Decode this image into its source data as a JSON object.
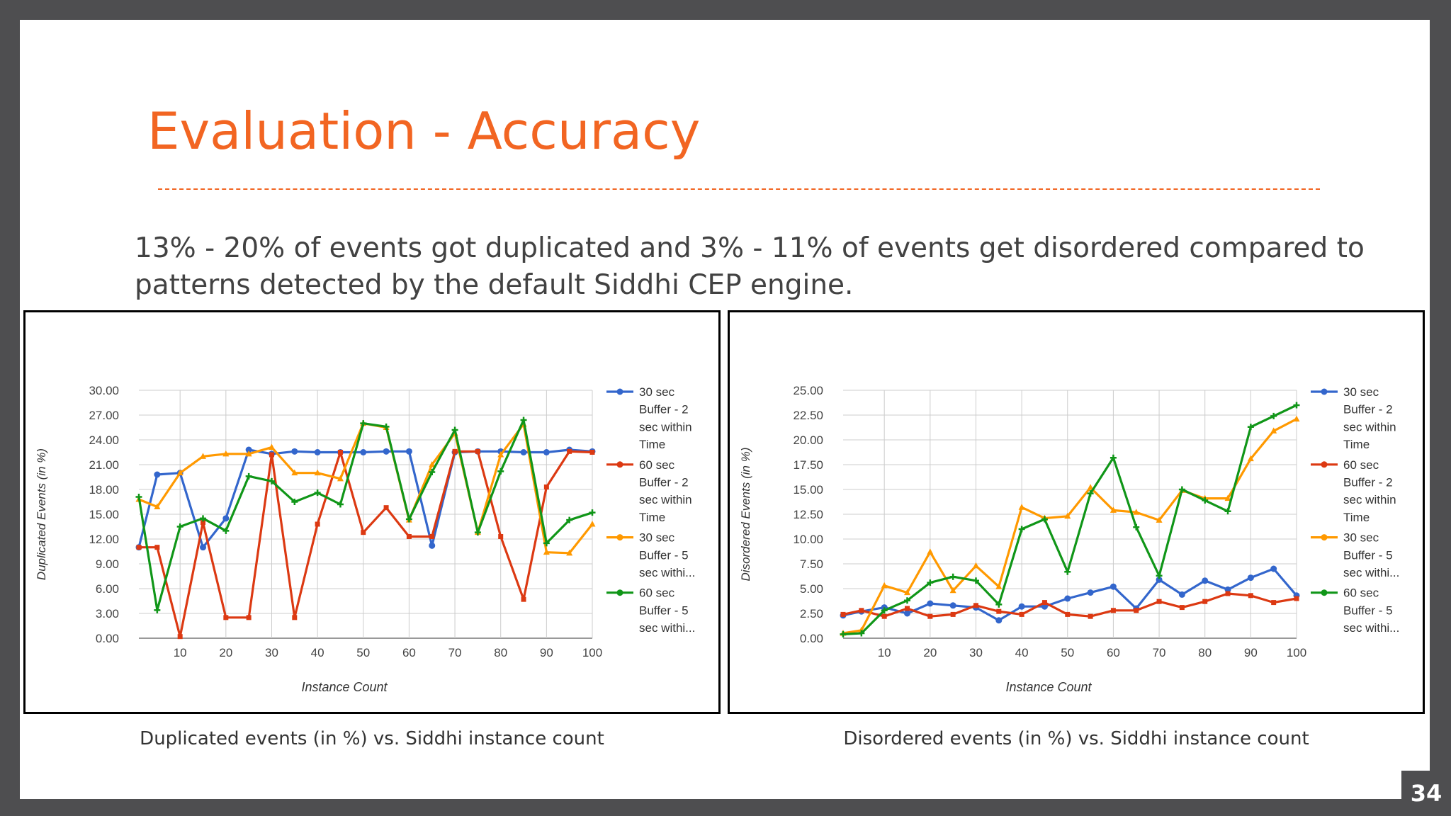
{
  "slide": {
    "title": "Evaluation - Accuracy",
    "body": "13% - 20% of events got duplicated and 3% - 11% of events get disordered compared to patterns detected by the default Siddhi CEP engine.",
    "page_number": "34"
  },
  "captions": [
    "Duplicated events (in %) vs. Siddhi instance count",
    "Disordered events (in %) vs. Siddhi instance count"
  ],
  "chart_data": [
    {
      "type": "line",
      "xlabel": "Instance Count",
      "ylabel": "Duplicated Events (in %)",
      "xticks": [
        10,
        20,
        30,
        40,
        50,
        60,
        70,
        80,
        90,
        100
      ],
      "yticks": [
        "0.00",
        "3.00",
        "6.00",
        "9.00",
        "12.00",
        "15.00",
        "18.00",
        "21.00",
        "24.00",
        "27.00",
        "30.00"
      ],
      "xlim": [
        1,
        100
      ],
      "ylim": [
        0,
        30
      ],
      "grid": true,
      "legend": "right",
      "x": [
        1,
        5,
        10,
        15,
        20,
        25,
        30,
        35,
        40,
        45,
        50,
        55,
        60,
        65,
        70,
        75,
        80,
        85,
        90,
        95,
        100
      ],
      "series": [
        {
          "name": "30 sec Buffer - 2 sec within Time",
          "legend_lines": [
            "30 sec",
            "Buffer - 2",
            "sec within",
            "Time"
          ],
          "color": "#3366cc",
          "marker": "circle",
          "values": [
            11.0,
            19.8,
            20.0,
            11.0,
            14.5,
            22.8,
            22.3,
            22.6,
            22.5,
            22.5,
            22.5,
            22.6,
            22.6,
            11.2,
            22.5,
            22.6,
            22.6,
            22.5,
            22.5,
            22.8,
            22.6
          ]
        },
        {
          "name": "60 sec Buffer - 2 sec within Time",
          "legend_lines": [
            "60 sec",
            "Buffer - 2",
            "sec within",
            "Time"
          ],
          "color": "#dc3912",
          "marker": "square",
          "values": [
            11.0,
            11.0,
            0.2,
            14.0,
            2.5,
            2.5,
            22.2,
            2.5,
            13.8,
            22.5,
            12.8,
            15.8,
            12.3,
            12.3,
            22.6,
            22.6,
            12.3,
            4.7,
            18.3,
            22.6,
            22.5
          ]
        },
        {
          "name": "30 sec Buffer - 5 sec withi...",
          "legend_lines": [
            "30 sec",
            "Buffer - 5",
            "sec withi..."
          ],
          "color": "#ff9900",
          "marker": "triangle",
          "values": [
            16.8,
            15.9,
            20.0,
            22.0,
            22.3,
            22.3,
            23.1,
            20.0,
            20.0,
            19.3,
            26.0,
            25.5,
            14.3,
            21.0,
            24.8,
            12.8,
            22.2,
            25.9,
            10.4,
            10.3,
            13.8
          ]
        },
        {
          "name": "60 sec Buffer - 5 sec withi...",
          "legend_lines": [
            "60 sec",
            "Buffer - 5",
            "sec withi..."
          ],
          "color": "#109618",
          "marker": "plus",
          "values": [
            17.1,
            3.4,
            13.5,
            14.5,
            13.0,
            19.6,
            19.0,
            16.5,
            17.6,
            16.2,
            26.0,
            25.6,
            14.4,
            20.1,
            25.2,
            12.8,
            20.2,
            26.4,
            11.5,
            14.3,
            15.2
          ]
        }
      ]
    },
    {
      "type": "line",
      "xlabel": "Instance Count",
      "ylabel": "Disordered Events (in %)",
      "xticks": [
        10,
        20,
        30,
        40,
        50,
        60,
        70,
        80,
        90,
        100
      ],
      "yticks": [
        "0.00",
        "2.50",
        "5.00",
        "7.50",
        "10.00",
        "12.50",
        "15.00",
        "17.50",
        "20.00",
        "22.50",
        "25.00"
      ],
      "xlim": [
        1,
        100
      ],
      "ylim": [
        0,
        25
      ],
      "grid": true,
      "legend": "right",
      "x": [
        1,
        5,
        10,
        15,
        20,
        25,
        30,
        35,
        40,
        45,
        50,
        55,
        60,
        65,
        70,
        75,
        80,
        85,
        90,
        95,
        100
      ],
      "series": [
        {
          "name": "30 sec Buffer - 2 sec within Time",
          "legend_lines": [
            "30 sec",
            "Buffer - 2",
            "sec within",
            "Time"
          ],
          "color": "#3366cc",
          "marker": "circle",
          "values": [
            2.3,
            2.7,
            3.1,
            2.5,
            3.5,
            3.3,
            3.1,
            1.8,
            3.2,
            3.2,
            4.0,
            4.6,
            5.2,
            3.0,
            5.9,
            4.4,
            5.8,
            4.9,
            6.1,
            7.0,
            4.3
          ]
        },
        {
          "name": "60 sec Buffer - 2 sec within Time",
          "legend_lines": [
            "60 sec",
            "Buffer - 2",
            "sec within",
            "Time"
          ],
          "color": "#dc3912",
          "marker": "square",
          "values": [
            2.4,
            2.8,
            2.2,
            3.0,
            2.2,
            2.4,
            3.3,
            2.7,
            2.4,
            3.6,
            2.4,
            2.2,
            2.8,
            2.8,
            3.7,
            3.1,
            3.7,
            4.5,
            4.3,
            3.6,
            4.0
          ]
        },
        {
          "name": "30 sec Buffer - 5 sec withi...",
          "legend_lines": [
            "30 sec",
            "Buffer - 5",
            "sec withi..."
          ],
          "color": "#ff9900",
          "marker": "triangle",
          "values": [
            0.5,
            0.8,
            5.3,
            4.6,
            8.7,
            4.8,
            7.3,
            5.2,
            13.2,
            12.1,
            12.3,
            15.2,
            12.9,
            12.7,
            11.9,
            14.9,
            14.1,
            14.1,
            18.1,
            20.9,
            22.1
          ]
        },
        {
          "name": "60 sec Buffer - 5 sec withi...",
          "legend_lines": [
            "60 sec",
            "Buffer - 5",
            "sec withi..."
          ],
          "color": "#109618",
          "marker": "plus",
          "values": [
            0.4,
            0.5,
            2.8,
            3.8,
            5.6,
            6.2,
            5.8,
            3.4,
            11.0,
            12.0,
            6.7,
            14.6,
            18.2,
            11.2,
            6.3,
            15.0,
            13.9,
            12.8,
            21.3,
            22.4,
            23.5
          ]
        }
      ]
    }
  ]
}
